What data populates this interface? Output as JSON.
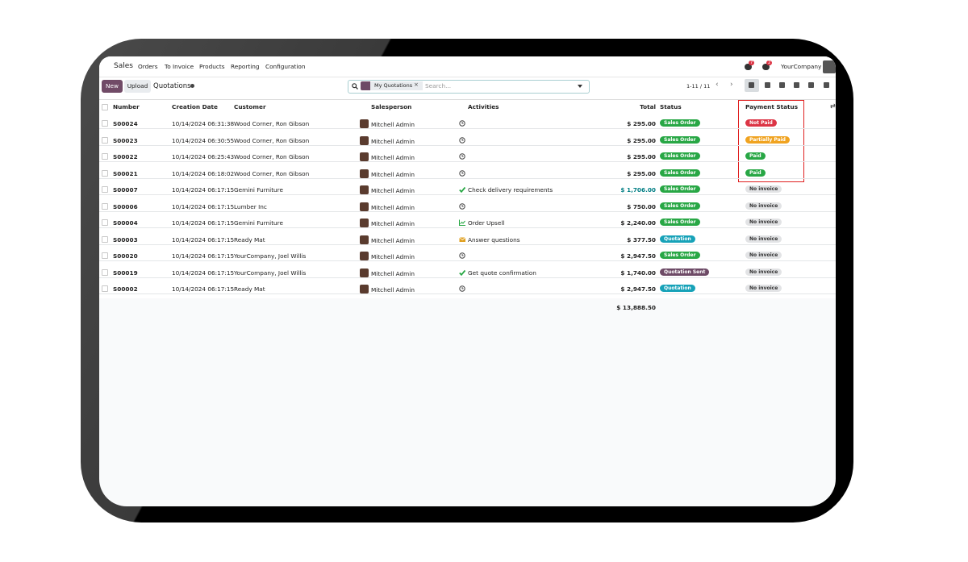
{
  "nav": {
    "app": "Sales",
    "menu": [
      "Orders",
      "To Invoice",
      "Products",
      "Reporting",
      "Configuration"
    ],
    "badges": [
      "7",
      "2"
    ],
    "company": "YourCompany"
  },
  "toolbar": {
    "new": "New",
    "upload": "Upload",
    "title": "Quotations",
    "filter": "My Quotations",
    "search_placeholder": "Search...",
    "pager": "1-11 / 11"
  },
  "table": {
    "headers": [
      "Number",
      "Creation Date",
      "Customer",
      "Salesperson",
      "Activities",
      "Total",
      "Status",
      "Payment Status"
    ],
    "rows": [
      {
        "number": "S00024",
        "date": "10/14/2024 06:31:38",
        "customer": "Wood Corner, Ron Gibson",
        "salesperson": "Mitchell Admin",
        "activity": {
          "icon": "clock",
          "text": null
        },
        "total": "$ 295.00",
        "status": {
          "text": "Sales Order",
          "color": "#28a745"
        },
        "payment": {
          "text": "Not Paid",
          "color": "#dc3545"
        }
      },
      {
        "number": "S00023",
        "date": "10/14/2024 06:30:55",
        "customer": "Wood Corner, Ron Gibson",
        "salesperson": "Mitchell Admin",
        "activity": {
          "icon": "clock",
          "text": null
        },
        "total": "$ 295.00",
        "status": {
          "text": "Sales Order",
          "color": "#28a745"
        },
        "payment": {
          "text": "Partially Paid",
          "color": "#f0a320"
        }
      },
      {
        "number": "S00022",
        "date": "10/14/2024 06:25:43",
        "customer": "Wood Corner, Ron Gibson",
        "salesperson": "Mitchell Admin",
        "activity": {
          "icon": "clock",
          "text": null
        },
        "total": "$ 295.00",
        "status": {
          "text": "Sales Order",
          "color": "#28a745"
        },
        "payment": {
          "text": "Paid",
          "color": "#28a745"
        }
      },
      {
        "number": "S00021",
        "date": "10/14/2024 06:18:02",
        "customer": "Wood Corner, Ron Gibson",
        "salesperson": "Mitchell Admin",
        "activity": {
          "icon": "clock",
          "text": null
        },
        "total": "$ 295.00",
        "status": {
          "text": "Sales Order",
          "color": "#28a745"
        },
        "payment": {
          "text": "Paid",
          "color": "#28a745"
        }
      },
      {
        "number": "S00007",
        "date": "10/14/2024 06:17:15",
        "customer": "Gemini Furniture",
        "salesperson": "Mitchell Admin",
        "activity": {
          "icon": "check",
          "text": "Check delivery requirements"
        },
        "total": "$ 1,706.00",
        "total_color": "#017e84",
        "status": {
          "text": "Sales Order",
          "color": "#28a745"
        },
        "payment": {
          "text": "No invoice",
          "color": "#e2e3e5"
        }
      },
      {
        "number": "S00006",
        "date": "10/14/2024 06:17:15",
        "customer": "Lumber Inc",
        "salesperson": "Mitchell Admin",
        "activity": {
          "icon": "clock",
          "text": null
        },
        "total": "$ 750.00",
        "status": {
          "text": "Sales Order",
          "color": "#28a745"
        },
        "payment": {
          "text": "No invoice",
          "color": "#e2e3e5"
        }
      },
      {
        "number": "S00004",
        "date": "10/14/2024 06:17:15",
        "customer": "Gemini Furniture",
        "salesperson": "Mitchell Admin",
        "activity": {
          "icon": "chart",
          "text": "Order Upsell"
        },
        "total": "$ 2,240.00",
        "status": {
          "text": "Sales Order",
          "color": "#28a745"
        },
        "payment": {
          "text": "No invoice",
          "color": "#e2e3e5"
        }
      },
      {
        "number": "S00003",
        "date": "10/14/2024 06:17:15",
        "customer": "Ready Mat",
        "salesperson": "Mitchell Admin",
        "activity": {
          "icon": "mail",
          "text": "Answer questions"
        },
        "total": "$ 377.50",
        "status": {
          "text": "Quotation",
          "color": "#17a2b8"
        },
        "payment": {
          "text": "No invoice",
          "color": "#e2e3e5"
        }
      },
      {
        "number": "S00020",
        "date": "10/14/2024 06:17:15",
        "customer": "YourCompany, Joel Willis",
        "salesperson": "Mitchell Admin",
        "activity": {
          "icon": "clock",
          "text": null
        },
        "total": "$ 2,947.50",
        "status": {
          "text": "Sales Order",
          "color": "#28a745"
        },
        "payment": {
          "text": "No invoice",
          "color": "#e2e3e5"
        }
      },
      {
        "number": "S00019",
        "date": "10/14/2024 06:17:15",
        "customer": "YourCompany, Joel Willis",
        "salesperson": "Mitchell Admin",
        "activity": {
          "icon": "check",
          "text": "Get quote confirmation"
        },
        "total": "$ 1,740.00",
        "status": {
          "text": "Quotation Sent",
          "color": "#6d4a66"
        },
        "payment": {
          "text": "No invoice",
          "color": "#e2e3e5"
        }
      },
      {
        "number": "S00002",
        "date": "10/14/2024 06:17:15",
        "customer": "Ready Mat",
        "salesperson": "Mitchell Admin",
        "activity": {
          "icon": "clock",
          "text": null
        },
        "total": "$ 2,947.50",
        "status": {
          "text": "Quotation",
          "color": "#17a2b8"
        },
        "payment": {
          "text": "No invoice",
          "color": "#e2e3e5"
        }
      }
    ],
    "grand_total": "$ 13,888.50"
  }
}
